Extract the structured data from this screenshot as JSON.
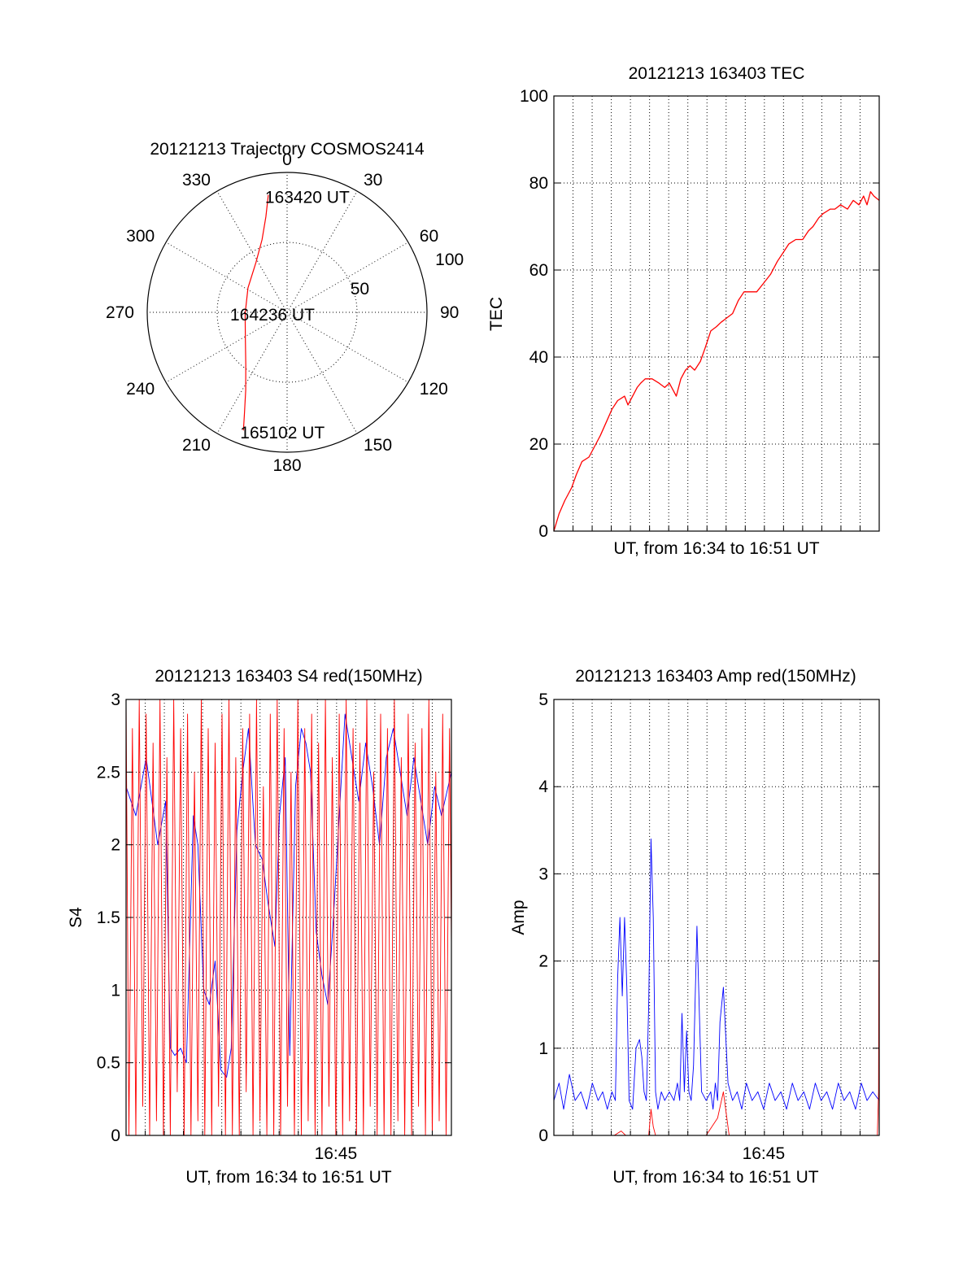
{
  "chart_data": [
    {
      "id": "trajectory",
      "type": "polar",
      "title": "20121213 Trajectory COSMOS2414",
      "azimuth_labels": [
        "0",
        "30",
        "60",
        "90",
        "120",
        "150",
        "180",
        "210",
        "240",
        "270",
        "300",
        "330"
      ],
      "radial_labels": [
        "50",
        "100"
      ],
      "radial_range": [
        0,
        100
      ],
      "grid": true,
      "trajectory": {
        "color": "#ff0000",
        "points": [
          {
            "az": 350.9,
            "r": 85
          },
          {
            "az": 347.5,
            "r": 70
          },
          {
            "az": 341.0,
            "r": 55
          },
          {
            "az": 328.0,
            "r": 42
          },
          {
            "az": 302.0,
            "r": 33
          },
          {
            "az": 268.0,
            "r": 30
          },
          {
            "az": 236.0,
            "r": 36
          },
          {
            "az": 218.0,
            "r": 48
          },
          {
            "az": 208.0,
            "r": 63
          },
          {
            "az": 203.0,
            "r": 78
          },
          {
            "az": 200.3,
            "r": 90
          }
        ]
      },
      "annotations": [
        {
          "text": "163420 UT",
          "az": 350.9,
          "r": 85
        },
        {
          "text": "164236 UT",
          "az": 0,
          "r": 0
        },
        {
          "text": "165102 UT",
          "az": 200.3,
          "r": 90
        }
      ]
    },
    {
      "id": "tec",
      "type": "line",
      "title": "20121213 163403 TEC",
      "xlabel": "UT, from 16:34 to 16:51 UT",
      "ylabel": "TEC",
      "xlim": [
        16.5675,
        16.8506
      ],
      "ylim": [
        0,
        100
      ],
      "yticks": [
        "0",
        "20",
        "40",
        "60",
        "80",
        "100"
      ],
      "xticks": [],
      "grid": true,
      "series": [
        {
          "color": "#ff0000",
          "x": [
            16.5675,
            16.572,
            16.577,
            16.583,
            16.587,
            16.592,
            16.598,
            16.604,
            16.608,
            16.613,
            16.618,
            16.623,
            16.629,
            16.632,
            16.636,
            16.64,
            16.643,
            16.647,
            16.653,
            16.659,
            16.664,
            16.668,
            16.674,
            16.678,
            16.682,
            16.686,
            16.69,
            16.695,
            16.699,
            16.704,
            16.709,
            16.713,
            16.718,
            16.723,
            16.728,
            16.733,
            16.738,
            16.744,
            16.75,
            16.756,
            16.762,
            16.767,
            16.772,
            16.778,
            16.784,
            16.789,
            16.793,
            16.798,
            16.802,
            16.808,
            16.812,
            16.817,
            16.823,
            16.828,
            16.833,
            16.837,
            16.84,
            16.843,
            16.846,
            16.8506
          ],
          "y": [
            0,
            4,
            7,
            10,
            13,
            16,
            17,
            20,
            22,
            25,
            28,
            30,
            31,
            29,
            31,
            33,
            34,
            35,
            35,
            34,
            33,
            34,
            31,
            35,
            37,
            38,
            37,
            39,
            42,
            46,
            47,
            48,
            49,
            50,
            53,
            55,
            55,
            55,
            57,
            59,
            62,
            64,
            66,
            67,
            67,
            69,
            70,
            72,
            73,
            74,
            74,
            75,
            74,
            76,
            75,
            77,
            75,
            78,
            77,
            76
          ]
        }
      ]
    },
    {
      "id": "s4",
      "type": "line",
      "title": "20121213 163403 S4 red(150MHz)",
      "xlabel": "UT, from 16:34 to 16:51 UT",
      "ylabel": "S4",
      "xlim": [
        16.5675,
        16.8506
      ],
      "ylim": [
        0,
        3
      ],
      "yticks": [
        "0",
        "0.5",
        "1",
        "1.5",
        "2",
        "2.5",
        "3"
      ],
      "xticks": [
        {
          "value": 16.75,
          "label": "16:45"
        }
      ],
      "grid": true,
      "series": [
        {
          "color": "#0000ff",
          "x": [
            16.5675,
            16.576,
            16.585,
            16.595,
            16.602,
            16.606,
            16.61,
            16.615,
            16.62,
            16.626,
            16.63,
            16.635,
            16.64,
            16.645,
            16.65,
            16.655,
            16.659,
            16.664,
            16.669,
            16.674,
            16.68,
            16.686,
            16.691,
            16.697,
            16.701,
            16.706,
            16.71,
            16.715,
            16.72,
            16.724,
            16.728,
            16.733,
            16.738,
            16.743,
            16.748,
            16.753,
            16.758,
            16.764,
            16.77,
            16.776,
            16.782,
            16.788,
            16.794,
            16.8,
            16.806,
            16.812,
            16.818,
            16.824,
            16.83,
            16.836,
            16.842,
            16.8506
          ],
          "y": [
            2.4,
            2.2,
            2.6,
            2.0,
            2.3,
            0.6,
            0.55,
            0.6,
            0.5,
            2.2,
            2.0,
            1.0,
            0.9,
            1.2,
            0.45,
            0.4,
            0.6,
            2.1,
            2.5,
            2.8,
            2.0,
            1.9,
            1.6,
            1.3,
            2.2,
            2.6,
            0.55,
            2.4,
            2.8,
            2.7,
            2.5,
            1.4,
            1.1,
            0.9,
            1.5,
            2.2,
            2.9,
            2.6,
            2.3,
            2.7,
            2.4,
            2.0,
            2.6,
            2.8,
            2.5,
            2.2,
            2.6,
            2.3,
            2.0,
            2.4,
            2.2,
            2.5
          ]
        },
        {
          "color": "#ff0000",
          "x": [
            16.5675,
            16.57,
            16.573,
            16.576,
            16.579,
            16.582,
            16.585,
            16.588,
            16.591,
            16.594,
            16.597,
            16.6,
            16.603,
            16.606,
            16.609,
            16.612,
            16.615,
            16.618,
            16.621,
            16.624,
            16.627,
            16.63,
            16.633,
            16.636,
            16.639,
            16.642,
            16.645,
            16.648,
            16.651,
            16.654,
            16.657,
            16.66,
            16.663,
            16.666,
            16.669,
            16.672,
            16.675,
            16.678,
            16.681,
            16.684,
            16.687,
            16.69,
            16.693,
            16.696,
            16.699,
            16.702,
            16.705,
            16.708,
            16.711,
            16.714,
            16.717,
            16.72,
            16.723,
            16.726,
            16.729,
            16.732,
            16.735,
            16.738,
            16.741,
            16.744,
            16.747,
            16.75,
            16.753,
            16.756,
            16.759,
            16.762,
            16.765,
            16.768,
            16.771,
            16.774,
            16.777,
            16.78,
            16.783,
            16.786,
            16.789,
            16.792,
            16.795,
            16.798,
            16.801,
            16.804,
            16.807,
            16.81,
            16.813,
            16.816,
            16.819,
            16.822,
            16.825,
            16.828,
            16.831,
            16.834,
            16.837,
            16.84,
            16.843,
            16.846,
            16.849,
            16.8506
          ],
          "y": [
            3.0,
            0.0,
            2.8,
            0.0,
            3.0,
            0.2,
            2.9,
            0.0,
            2.7,
            0.1,
            3.0,
            0.0,
            2.6,
            0.0,
            3.0,
            0.3,
            2.8,
            0.0,
            2.9,
            0.0,
            2.5,
            0.1,
            3.0,
            0.0,
            2.8,
            0.0,
            2.7,
            0.2,
            2.9,
            0.0,
            3.0,
            0.0,
            2.6,
            0.0,
            2.8,
            0.3,
            2.9,
            0.0,
            3.0,
            0.1,
            2.4,
            0.0,
            2.9,
            0.0,
            3.0,
            0.0,
            2.8,
            0.2,
            2.5,
            0.0,
            3.0,
            0.0,
            2.8,
            0.1,
            2.9,
            0.0,
            2.7,
            0.0,
            3.0,
            0.2,
            2.6,
            0.0,
            2.9,
            0.0,
            3.0,
            0.1,
            2.8,
            0.0,
            2.7,
            0.0,
            3.0,
            0.2,
            2.5,
            0.0,
            2.9,
            0.0,
            2.8,
            0.0,
            3.0,
            0.1,
            2.6,
            0.0,
            2.9,
            0.0,
            2.7,
            0.2,
            2.8,
            0.0,
            3.0,
            0.0,
            2.5,
            0.1,
            2.9,
            0.0,
            2.8,
            1.3
          ]
        }
      ]
    },
    {
      "id": "amp",
      "type": "line",
      "title": "20121213 163403 Amp red(150MHz)",
      "xlabel": "UT, from 16:34 to 16:51 UT",
      "ylabel": "Amp",
      "xlim": [
        16.5675,
        16.8506
      ],
      "ylim": [
        0,
        5
      ],
      "yticks": [
        "0",
        "1",
        "2",
        "3",
        "4",
        "5"
      ],
      "xticks": [
        {
          "value": 16.75,
          "label": "16:45"
        }
      ],
      "grid": true,
      "series": [
        {
          "color": "#0000ff",
          "x": [
            16.5675,
            16.572,
            16.576,
            16.581,
            16.586,
            16.591,
            16.596,
            16.601,
            16.606,
            16.61,
            16.614,
            16.618,
            16.621,
            16.623,
            16.625,
            16.627,
            16.629,
            16.631,
            16.633,
            16.636,
            16.639,
            16.642,
            16.644,
            16.646,
            16.648,
            16.65,
            16.652,
            16.654,
            16.656,
            16.658,
            16.661,
            16.664,
            16.668,
            16.672,
            16.675,
            16.677,
            16.679,
            16.681,
            16.683,
            16.685,
            16.687,
            16.689,
            16.692,
            16.696,
            16.7,
            16.704,
            16.706,
            16.708,
            16.71,
            16.712,
            16.715,
            16.719,
            16.723,
            16.727,
            16.731,
            16.735,
            16.74,
            16.745,
            16.75,
            16.755,
            16.76,
            16.765,
            16.77,
            16.775,
            16.78,
            16.785,
            16.79,
            16.795,
            16.8,
            16.805,
            16.81,
            16.815,
            16.82,
            16.825,
            16.83,
            16.835,
            16.84,
            16.845,
            16.8506
          ],
          "y": [
            0.4,
            0.6,
            0.3,
            0.7,
            0.4,
            0.5,
            0.3,
            0.6,
            0.4,
            0.5,
            0.3,
            0.5,
            0.4,
            1.8,
            2.5,
            1.6,
            2.5,
            1.7,
            0.4,
            0.3,
            1.0,
            1.1,
            0.9,
            0.5,
            0.4,
            1.5,
            3.4,
            2.5,
            0.5,
            0.3,
            0.5,
            0.4,
            0.5,
            0.4,
            0.6,
            0.4,
            1.4,
            0.5,
            1.2,
            0.5,
            0.4,
            0.8,
            2.4,
            0.5,
            0.4,
            0.5,
            0.3,
            0.6,
            0.4,
            1.3,
            1.7,
            0.6,
            0.4,
            0.5,
            0.3,
            0.6,
            0.4,
            0.5,
            0.3,
            0.6,
            0.4,
            0.5,
            0.3,
            0.6,
            0.4,
            0.5,
            0.3,
            0.6,
            0.4,
            0.5,
            0.3,
            0.6,
            0.4,
            0.5,
            0.3,
            0.6,
            0.4,
            0.5,
            0.4
          ]
        },
        {
          "color": "#ff0000",
          "x": [
            16.5675,
            16.62,
            16.626,
            16.63,
            16.65,
            16.652,
            16.654,
            16.656,
            16.7,
            16.71,
            16.715,
            16.72,
            16.849,
            16.85,
            16.8506
          ],
          "y": [
            0.0,
            0.0,
            0.05,
            0.0,
            0.0,
            0.3,
            0.1,
            0.0,
            0.0,
            0.2,
            0.5,
            0.0,
            0.0,
            0.5,
            4.1
          ]
        }
      ]
    }
  ]
}
